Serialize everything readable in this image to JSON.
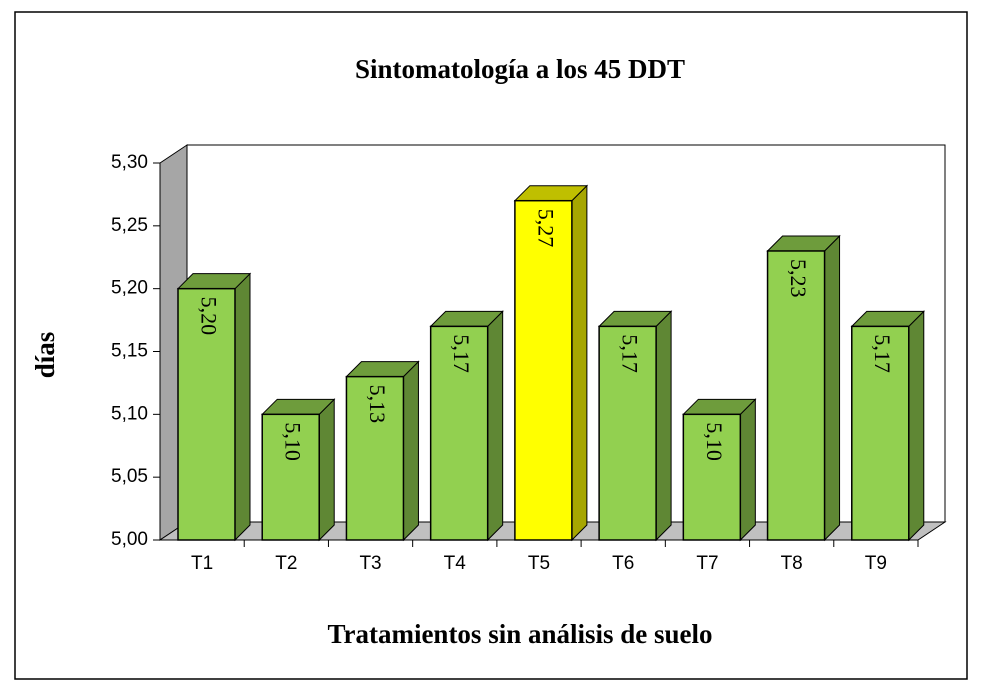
{
  "chart_data": {
    "type": "bar3d",
    "title": "Sintomatología a los 45 DDT",
    "xlabel": "Tratamientos sin análisis de suelo",
    "ylabel": "días",
    "categories": [
      "T1",
      "T2",
      "T3",
      "T4",
      "T5",
      "T6",
      "T7",
      "T8",
      "T9"
    ],
    "values": [
      5.2,
      5.1,
      5.13,
      5.17,
      5.27,
      5.17,
      5.1,
      5.23,
      5.17
    ],
    "value_labels": [
      "5,20",
      "5,10",
      "5,13",
      "5,17",
      "5,27",
      "5,17",
      "5,10",
      "5,23",
      "5,17"
    ],
    "colors": [
      "#92d050",
      "#92d050",
      "#92d050",
      "#92d050",
      "#ffff00",
      "#92d050",
      "#92d050",
      "#92d050",
      "#92d050"
    ],
    "ylim": [
      5.0,
      5.3
    ],
    "yticks": [
      {
        "value": 5.0,
        "label": "5,00"
      },
      {
        "value": 5.05,
        "label": "5,05"
      },
      {
        "value": 5.1,
        "label": "5,10"
      },
      {
        "value": 5.15,
        "label": "5,15"
      },
      {
        "value": 5.2,
        "label": "5,20"
      },
      {
        "value": 5.25,
        "label": "5,25"
      },
      {
        "value": 5.3,
        "label": "5,30"
      }
    ],
    "grid": false
  }
}
